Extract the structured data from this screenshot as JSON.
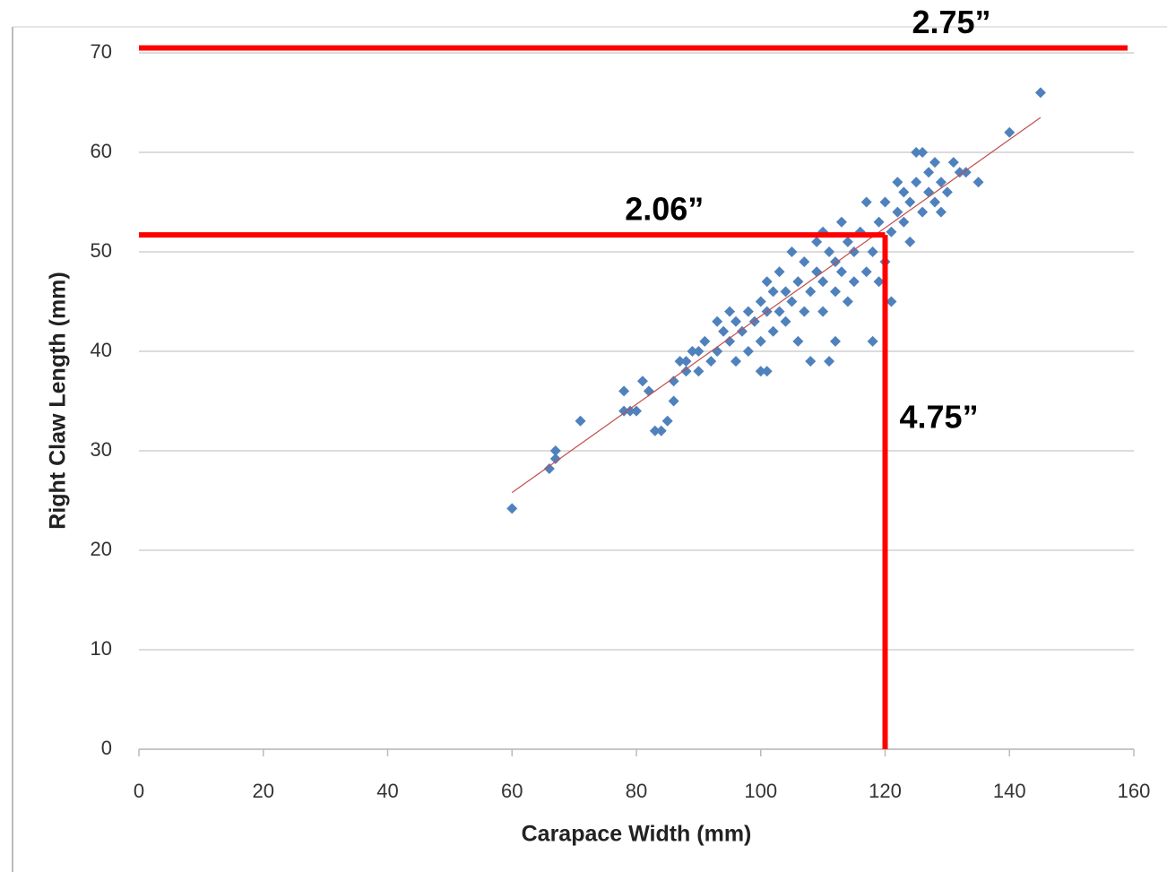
{
  "chart_data": {
    "type": "scatter",
    "x_label": "Carapace Width (mm)",
    "y_label": "Right Claw Length (mm)",
    "xlim": [
      0,
      160
    ],
    "ylim": [
      0,
      70
    ],
    "xticks": [
      0,
      20,
      40,
      60,
      80,
      100,
      120,
      140,
      160
    ],
    "yticks": [
      0,
      10,
      20,
      30,
      40,
      50,
      60,
      70
    ],
    "grid": true,
    "color": "#4f81bd",
    "x": [
      60,
      66,
      67,
      67,
      71,
      78,
      78,
      79,
      80,
      81,
      82,
      83,
      84,
      85,
      86,
      86,
      87,
      88,
      88,
      89,
      90,
      90,
      91,
      92,
      93,
      93,
      94,
      95,
      95,
      96,
      96,
      97,
      98,
      98,
      99,
      100,
      100,
      100,
      101,
      101,
      101,
      102,
      102,
      103,
      103,
      104,
      104,
      105,
      105,
      106,
      106,
      107,
      107,
      108,
      108,
      109,
      109,
      110,
      110,
      110,
      111,
      111,
      112,
      112,
      112,
      113,
      113,
      114,
      114,
      115,
      115,
      116,
      117,
      117,
      118,
      118,
      119,
      119,
      120,
      120,
      121,
      121,
      122,
      122,
      123,
      123,
      124,
      124,
      125,
      125,
      126,
      126,
      127,
      127,
      128,
      128,
      129,
      129,
      130,
      131,
      132,
      133,
      135,
      140,
      145
    ],
    "y": [
      24.2,
      28.2,
      29.2,
      30,
      33,
      36,
      34,
      34,
      34,
      37,
      36,
      32,
      32,
      33,
      35,
      37,
      39,
      39,
      38,
      40,
      38,
      40,
      41,
      39,
      40,
      43,
      42,
      41,
      44,
      39,
      43,
      42,
      40,
      44,
      43,
      38,
      41,
      45,
      38,
      44,
      47,
      42,
      46,
      44,
      48,
      43,
      46,
      45,
      50,
      41,
      47,
      44,
      49,
      39,
      46,
      48,
      51,
      44,
      47,
      52,
      39,
      50,
      41,
      46,
      49,
      48,
      53,
      45,
      51,
      47,
      50,
      52,
      48,
      55,
      41,
      50,
      47,
      53,
      49,
      55,
      45,
      52,
      54,
      57,
      53,
      56,
      51,
      55,
      57,
      60,
      54,
      60,
      56,
      58,
      55,
      59,
      54,
      57,
      56,
      59,
      58,
      58,
      57,
      62,
      66
    ],
    "trendline": {
      "x": [
        60,
        145
      ],
      "y": [
        25.8,
        63.5
      ],
      "color": "#c0504d"
    },
    "annotations": [
      {
        "text": "2.75”",
        "y": 70.5,
        "x": [
          0,
          159
        ],
        "color": "#ff0000"
      },
      {
        "text": "2.06”",
        "y": 51.7,
        "x": [
          0,
          120
        ],
        "color": "#ff0000"
      },
      {
        "text": "4.75”",
        "x": 120,
        "y": [
          0,
          51.7
        ],
        "color": "#ff0000"
      }
    ]
  }
}
